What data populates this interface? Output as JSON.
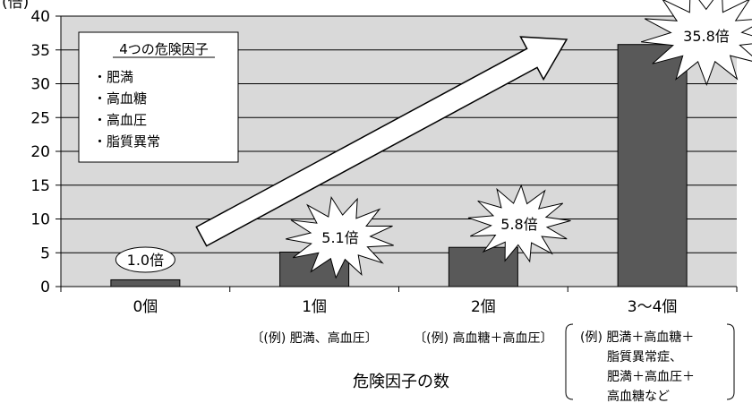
{
  "chart_data": {
    "type": "bar",
    "ylabel": "(倍)",
    "xlabel": "危険因子の数",
    "ylim": [
      0,
      40
    ],
    "yticks": [
      0,
      5,
      10,
      15,
      20,
      25,
      30,
      35,
      40
    ],
    "grid": true,
    "categories": [
      "0個",
      "1個",
      "2個",
      "3～4個"
    ],
    "values": [
      1.0,
      5.1,
      5.8,
      35.8
    ],
    "data_labels": [
      "1.0倍",
      "5.1倍",
      "5.8倍",
      "35.8倍"
    ],
    "examples": [
      [],
      [
        "〔(例)  肥満、高血圧〕"
      ],
      [
        "〔(例)  高血糖＋高血圧〕"
      ],
      [
        "(例)  肥満＋高血糖＋",
        "脂質異常症、",
        "肥満＋高血圧＋",
        "高血糖など"
      ]
    ],
    "legend": {
      "title": "4つの危険因子",
      "items": [
        "・肥満",
        "・高血糖",
        "・高血圧",
        "・脂質異常"
      ]
    }
  },
  "colors": {
    "plot_bg": "#d9d9d9",
    "bar": "#595959",
    "grid": "#000000"
  }
}
